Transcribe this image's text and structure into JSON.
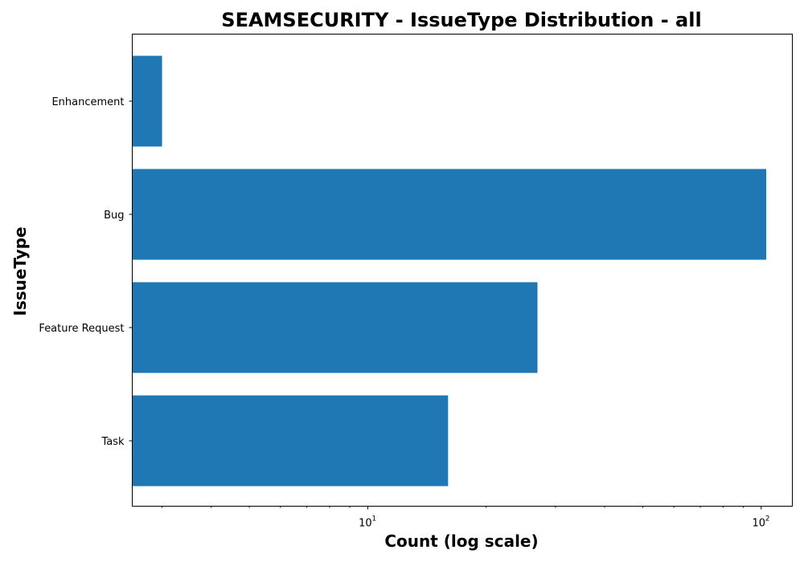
{
  "chart_data": {
    "type": "bar",
    "orientation": "horizontal",
    "title": "SEAMSECURITY - IssueType Distribution - all",
    "xlabel": "Count (log scale)",
    "ylabel": "IssueType",
    "xscale": "log",
    "xlim": [
      2.52,
      120
    ],
    "categories": [
      "Enhancement",
      "Bug",
      "Feature Request",
      "Task"
    ],
    "values": [
      3,
      103,
      27,
      16
    ],
    "x_major_ticks": [
      {
        "value": 10,
        "base": "10",
        "exponent": "1"
      },
      {
        "value": 100,
        "base": "10",
        "exponent": "2"
      }
    ],
    "bar_color": "#1f77b4",
    "grid": false,
    "legend": "none"
  }
}
